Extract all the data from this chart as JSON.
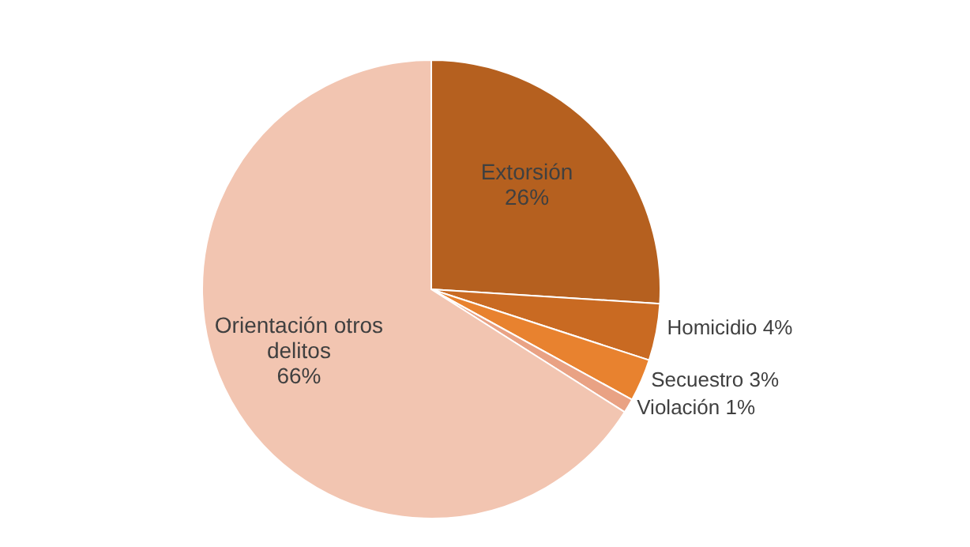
{
  "chart_data": {
    "type": "pie",
    "categories": [
      "Extorsión",
      "Homicidio",
      "Secuestro",
      "Violación",
      "Orientación otros delitos"
    ],
    "values": [
      26,
      4,
      3,
      1,
      66
    ],
    "value_labels": [
      "26%",
      "4%",
      "3%",
      "1%",
      "66%"
    ],
    "colors": [
      "#b5601f",
      "#c96a22",
      "#e8822f",
      "#e9a284",
      "#f2c5b1"
    ]
  }
}
